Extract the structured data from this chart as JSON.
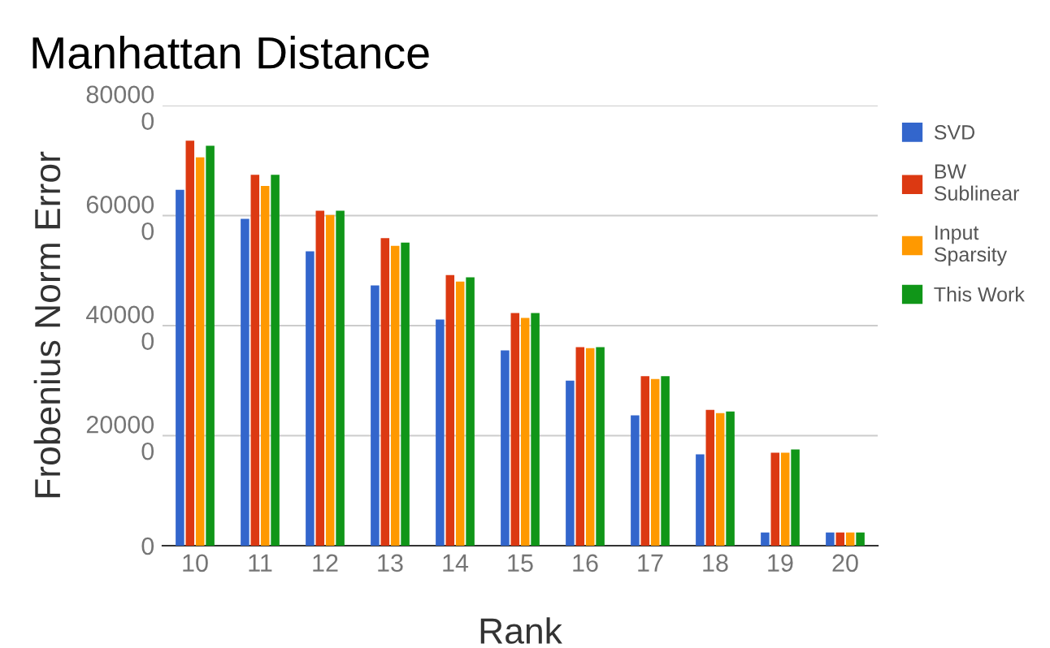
{
  "chart_data": {
    "type": "bar",
    "title": "Manhattan Distance",
    "xlabel": "Rank",
    "ylabel": "Frobenius Norm Error",
    "categories": [
      "10",
      "11",
      "12",
      "13",
      "14",
      "15",
      "16",
      "17",
      "18",
      "19",
      "20"
    ],
    "series": [
      {
        "name": "SVD",
        "color": "#3366cc",
        "values": [
          647000,
          594000,
          535000,
          473000,
          411000,
          355000,
          300000,
          237000,
          166000,
          24000,
          24000
        ]
      },
      {
        "name": "BW Sublinear",
        "color": "#dc3912",
        "values": [
          736000,
          674000,
          609000,
          559000,
          492000,
          423000,
          361000,
          308000,
          247000,
          169000,
          24000
        ]
      },
      {
        "name": "Input Sparsity",
        "color": "#ff9900",
        "values": [
          706000,
          654000,
          601000,
          545000,
          480000,
          414000,
          359000,
          303000,
          241000,
          169000,
          24000
        ]
      },
      {
        "name": "This Work",
        "color": "#109618",
        "values": [
          727000,
          674000,
          609000,
          551000,
          488000,
          423000,
          361000,
          308000,
          244000,
          175000,
          24000
        ]
      }
    ],
    "ylim": [
      0,
      800000
    ],
    "yticks": [
      0,
      200000,
      400000,
      600000,
      800000
    ],
    "grid": "y",
    "legend": "right"
  }
}
